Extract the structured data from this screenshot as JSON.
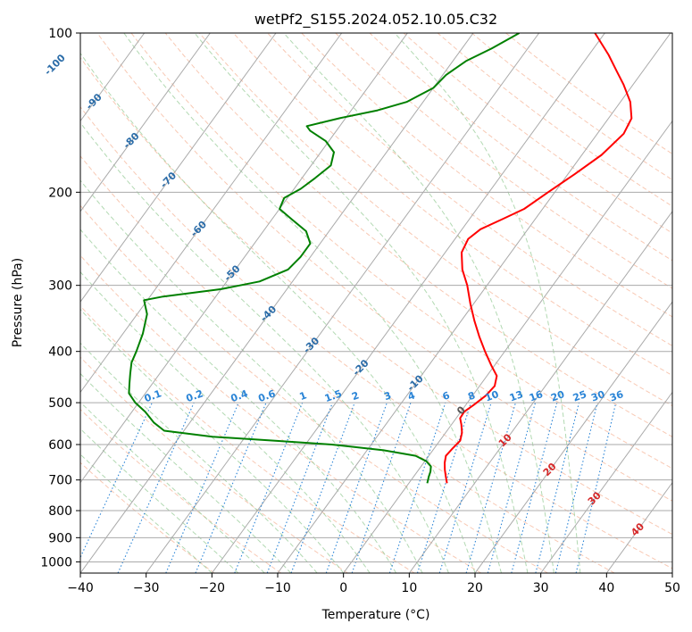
{
  "chart_data": {
    "type": "line",
    "subtype": "skew-T log-P diagram",
    "title": "wetPf2_S155.2024.052.10.05.C32",
    "xlabel": "Temperature (°C)",
    "ylabel": "Pressure (hPa)",
    "xlim": [
      -40,
      50
    ],
    "ylim": [
      1050,
      100
    ],
    "y_scale": "log",
    "grid": true,
    "x_ticks": [
      -40,
      -30,
      -20,
      -10,
      0,
      10,
      20,
      30,
      40,
      50
    ],
    "x_tick_labels": [
      "−40",
      "−30",
      "−20",
      "−10",
      "0",
      "10",
      "20",
      "30",
      "40",
      "50"
    ],
    "y_ticks": [
      1000,
      900,
      800,
      700,
      600,
      500,
      400,
      300,
      200,
      100
    ],
    "y_tick_labels": [
      "1000",
      "900",
      "800",
      "700",
      "600",
      "500",
      "400",
      "300",
      "200",
      "100"
    ],
    "isotherms_labels": [
      "-100",
      "-90",
      "-80",
      "-70",
      "-60",
      "-50",
      "-40",
      "-30",
      "-20",
      "-10",
      "0",
      "10",
      "20",
      "30",
      "40"
    ],
    "mixing_ratio_labels": [
      "0.1",
      "0.2",
      "0.4",
      "0.6",
      "1",
      "1.5",
      "2",
      "3",
      "4",
      "6",
      "8",
      "10",
      "13",
      "16",
      "20",
      "25",
      "30",
      "36"
    ],
    "series": [
      {
        "color": "#ff0000",
        "points": [
          {
            "p": 710,
            "t": 5.8
          },
          {
            "p": 690,
            "t": 4.9
          },
          {
            "p": 670,
            "t": 4.0
          },
          {
            "p": 650,
            "t": 3.2
          },
          {
            "p": 630,
            "t": 2.6
          },
          {
            "p": 610,
            "t": 2.8
          },
          {
            "p": 590,
            "t": 3.1
          },
          {
            "p": 570,
            "t": 2.5
          },
          {
            "p": 550,
            "t": 1.5
          },
          {
            "p": 535,
            "t": 0.6
          },
          {
            "p": 520,
            "t": 0.5
          },
          {
            "p": 505,
            "t": 1.2
          },
          {
            "p": 485,
            "t": 2.0
          },
          {
            "p": 465,
            "t": 2.3
          },
          {
            "p": 445,
            "t": 1.5
          },
          {
            "p": 425,
            "t": -0.5
          },
          {
            "p": 400,
            "t": -3.0
          },
          {
            "p": 375,
            "t": -5.5
          },
          {
            "p": 350,
            "t": -8.0
          },
          {
            "p": 325,
            "t": -10.5
          },
          {
            "p": 300,
            "t": -13.0
          },
          {
            "p": 280,
            "t": -15.5
          },
          {
            "p": 260,
            "t": -17.5
          },
          {
            "p": 245,
            "t": -18.0
          },
          {
            "p": 235,
            "t": -17.2
          },
          {
            "p": 225,
            "t": -15.0
          },
          {
            "p": 215,
            "t": -12.8
          },
          {
            "p": 200,
            "t": -11.0
          },
          {
            "p": 185,
            "t": -9.0
          },
          {
            "p": 170,
            "t": -7.0
          },
          {
            "p": 155,
            "t": -6.0
          },
          {
            "p": 145,
            "t": -6.5
          },
          {
            "p": 135,
            "t": -8.5
          },
          {
            "p": 125,
            "t": -11.5
          },
          {
            "p": 118,
            "t": -14.0
          },
          {
            "p": 110,
            "t": -17.0
          },
          {
            "p": 100,
            "t": -21.5
          }
        ]
      },
      {
        "color": "#008000",
        "points": [
          {
            "p": 710,
            "t": 2.8
          },
          {
            "p": 690,
            "t": 2.3
          },
          {
            "p": 675,
            "t": 2.0
          },
          {
            "p": 660,
            "t": 1.5
          },
          {
            "p": 645,
            "t": 0.2
          },
          {
            "p": 630,
            "t": -2.0
          },
          {
            "p": 615,
            "t": -7.5
          },
          {
            "p": 600,
            "t": -16.0
          },
          {
            "p": 590,
            "t": -25.0
          },
          {
            "p": 580,
            "t": -35.0
          },
          {
            "p": 565,
            "t": -43.0
          },
          {
            "p": 545,
            "t": -45.5
          },
          {
            "p": 520,
            "t": -48.0
          },
          {
            "p": 500,
            "t": -50.5
          },
          {
            "p": 480,
            "t": -52.5
          },
          {
            "p": 460,
            "t": -53.5
          },
          {
            "p": 440,
            "t": -54.5
          },
          {
            "p": 420,
            "t": -55.5
          },
          {
            "p": 400,
            "t": -56.0
          },
          {
            "p": 370,
            "t": -57.0
          },
          {
            "p": 340,
            "t": -58.5
          },
          {
            "p": 320,
            "t": -60.5
          },
          {
            "p": 315,
            "t": -58.0
          },
          {
            "p": 305,
            "t": -50.0
          },
          {
            "p": 295,
            "t": -45.0
          },
          {
            "p": 280,
            "t": -42.0
          },
          {
            "p": 265,
            "t": -41.5
          },
          {
            "p": 250,
            "t": -41.5
          },
          {
            "p": 237,
            "t": -43.5
          },
          {
            "p": 225,
            "t": -47.0
          },
          {
            "p": 215,
            "t": -50.0
          },
          {
            "p": 205,
            "t": -50.5
          },
          {
            "p": 197,
            "t": -49.0
          },
          {
            "p": 188,
            "t": -48.0
          },
          {
            "p": 178,
            "t": -47.0
          },
          {
            "p": 168,
            "t": -48.0
          },
          {
            "p": 160,
            "t": -50.5
          },
          {
            "p": 153,
            "t": -54.0
          },
          {
            "p": 150,
            "t": -55.0
          },
          {
            "p": 145,
            "t": -51.0
          },
          {
            "p": 140,
            "t": -46.0
          },
          {
            "p": 135,
            "t": -42.5
          },
          {
            "p": 127,
            "t": -40.0
          },
          {
            "p": 120,
            "t": -39.5
          },
          {
            "p": 113,
            "t": -38.0
          },
          {
            "p": 107,
            "t": -35.5
          },
          {
            "p": 100,
            "t": -33.0
          }
        ]
      }
    ]
  }
}
